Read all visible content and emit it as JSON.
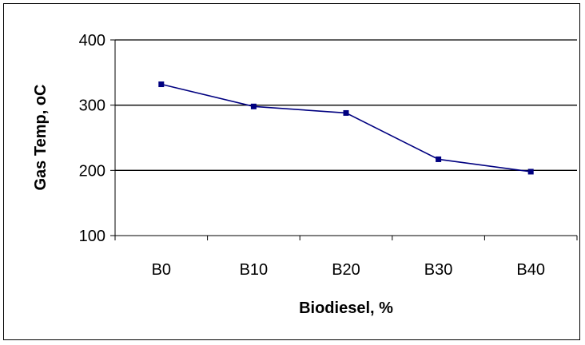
{
  "chart_data": {
    "type": "line",
    "title": "",
    "xlabel": "Biodiesel, %",
    "ylabel": "Gas Temp, oC",
    "categories": [
      "B0",
      "B10",
      "B20",
      "B30",
      "B40"
    ],
    "series": [
      {
        "values": [
          332,
          298,
          288,
          217,
          198
        ],
        "color": "#000080"
      }
    ],
    "ylim": [
      100,
      400
    ],
    "yticks": [
      100,
      200,
      300,
      400
    ],
    "grid": "horizontal",
    "legend": "none"
  }
}
